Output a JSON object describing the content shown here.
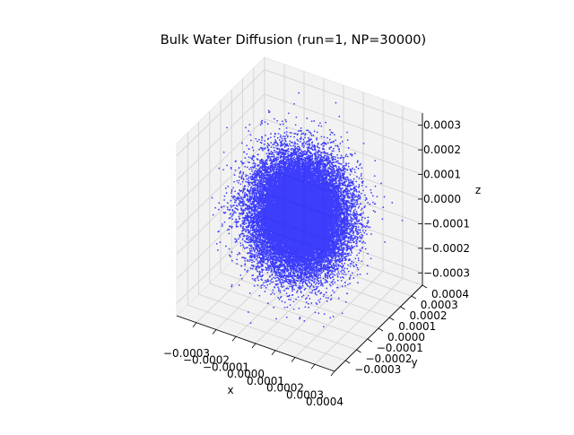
{
  "chart_data": {
    "type": "scatter",
    "projection": "3d",
    "title": "Bulk Water Diffusion (run=1, NP=30000)",
    "xlabel": "x",
    "ylabel": "y",
    "zlabel": "z",
    "xlim": [
      -0.0004,
      0.0004
    ],
    "ylim": [
      -0.0004,
      0.0004
    ],
    "zlim": [
      -0.00035,
      0.00035
    ],
    "x_ticks": [
      "−0.0003",
      "−0.0002",
      "−0.0001",
      "0.0000",
      "0.0001",
      "0.0002",
      "0.0003",
      "0.0004"
    ],
    "y_ticks": [
      "−0.0003",
      "−0.0002",
      "−0.0001",
      "0.0000",
      "0.0001",
      "0.0002",
      "0.0003",
      "0.0004"
    ],
    "z_ticks": [
      "−0.0003",
      "−0.0002",
      "−0.0001",
      "0.0000",
      "0.0001",
      "0.0002",
      "0.0003"
    ],
    "series": [
      {
        "n_points": 30000,
        "color": "#0000ff",
        "distribution": "isotropic gaussian cloud centred at origin",
        "std_dev": 0.0001
      }
    ],
    "pane_color": "#f2f2f2",
    "grid": true,
    "legend": "none"
  }
}
